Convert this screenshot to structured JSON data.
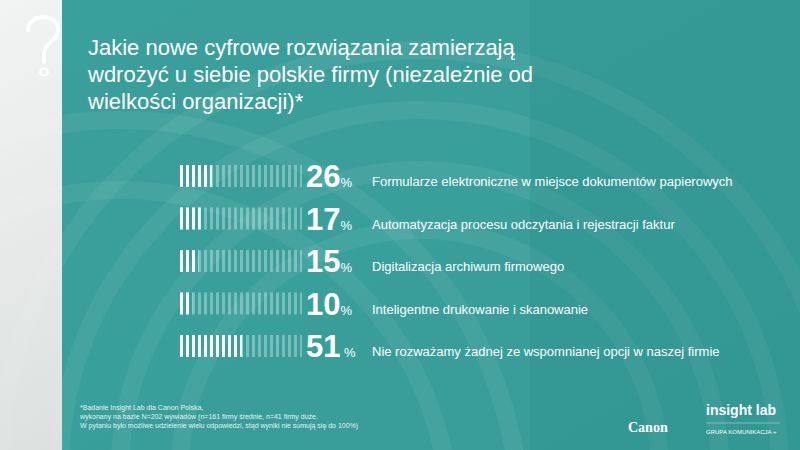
{
  "chart_data": {
    "type": "bar",
    "orientation": "horizontal",
    "title": "Jakie nowe cyfrowe rozwiązania zamierzają wdrożyć u siebie polskie firmy (niezależnie od wielkości organizacji)*",
    "categories": [
      "Formularze elektroniczne w miejsce dokumentów papierowych",
      "Automatyzacja procesu odczytania i rejestracji faktur",
      "Digitalizacja archiwum firmowego",
      "Inteligentne drukowanie i skanowanie",
      "Nie rozważamy żadnej ze wspomnianej opcji w naszej firmie"
    ],
    "values": [
      26,
      17,
      15,
      10,
      51
    ],
    "value_labels": [
      "26%",
      "17%",
      "15%",
      "10%",
      "51 %"
    ],
    "data_labels": true,
    "xlim": [
      0,
      100
    ],
    "tick_labels": false,
    "grid": false,
    "color": "#ffffff",
    "footnote": [
      "*Badanie Insight Lab dla Canon Polska,",
      "wykonany na bazie N=202 wywiadów (n=161 firmy średnie, n=41 firmy duże.",
      "W pytaniu było możliwe udzielenie wielu odpowiedzi, stąd wyniki nie sumują się do 100%)"
    ],
    "logos": [
      "Canon",
      "insight lab",
      "GRUPA KOMUNIKACJA +"
    ]
  }
}
